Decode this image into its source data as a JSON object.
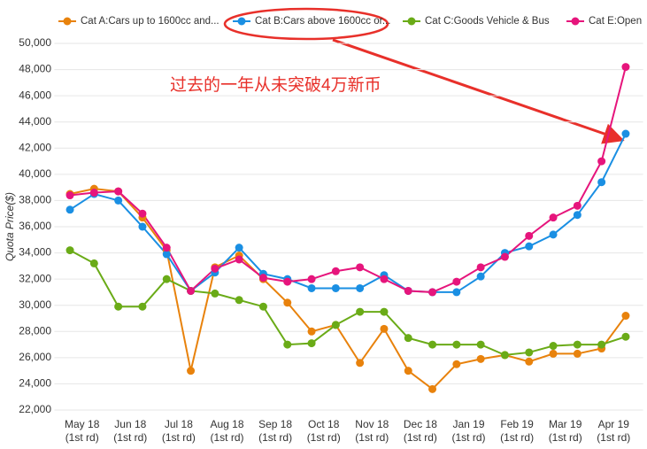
{
  "chart_data": {
    "type": "line",
    "y_label": "Quota Price($)",
    "annotation": "过去的一年从未突破4万新币",
    "categories": [
      "May 18 (1st rd)",
      null,
      "Jun 18 (1st rd)",
      null,
      "Jul 18 (1st rd)",
      null,
      "Aug 18 (1st rd)",
      null,
      "Sep 18 (1st rd)",
      null,
      "Oct 18 (1st rd)",
      null,
      "Nov 18 (1st rd)",
      null,
      "Dec 18 (1st rd)",
      null,
      "Jan 19 (1st rd)",
      null,
      "Feb 19 (1st rd)",
      null,
      "Mar 19 (1st rd)",
      null,
      "Apr 19 (1st rd)",
      null
    ],
    "series": [
      {
        "name": "Cat A:Cars up to 1600cc and...",
        "color": "#e8820c",
        "values": [
          38500,
          38900,
          38700,
          36700,
          34200,
          25000,
          32900,
          33800,
          32000,
          30200,
          28000,
          28500,
          25600,
          28200,
          25000,
          23600,
          25500,
          25900,
          26200,
          25700,
          26300,
          26300,
          26700,
          29200
        ]
      },
      {
        "name": "Cat B:Cars above 1600cc or...",
        "color": "#1a8fe3",
        "values": [
          37300,
          38500,
          38000,
          36000,
          33900,
          31100,
          32500,
          34400,
          32400,
          32000,
          31300,
          31300,
          31300,
          32300,
          31100,
          31000,
          31000,
          32200,
          34000,
          34500,
          35400,
          36900,
          39400,
          43100
        ]
      },
      {
        "name": "Cat C:Goods Vehicle & Bus",
        "color": "#6aab17",
        "values": [
          34200,
          33200,
          29900,
          29900,
          32000,
          31100,
          30900,
          30400,
          29900,
          27000,
          27100,
          28500,
          29500,
          29500,
          27500,
          27000,
          27000,
          27000,
          26200,
          26400,
          26900,
          27000,
          27000,
          27600
        ]
      },
      {
        "name": "Cat E:Open",
        "color": "#e6157c",
        "values": [
          38400,
          38600,
          38700,
          37000,
          34400,
          31100,
          32800,
          33500,
          32100,
          31800,
          32000,
          32600,
          32900,
          32000,
          31100,
          31000,
          31800,
          32900,
          33700,
          35300,
          36700,
          37600,
          41000,
          48200
        ]
      }
    ],
    "ylim": [
      22000,
      50000
    ],
    "yticks": [
      {
        "value": 22000,
        "label": "22,000"
      },
      {
        "value": 24000,
        "label": "24,000"
      },
      {
        "value": 26000,
        "label": "26,000"
      },
      {
        "value": 28000,
        "label": "28,000"
      },
      {
        "value": 30000,
        "label": "30,000"
      },
      {
        "value": 32000,
        "label": "32,000"
      },
      {
        "value": 34000,
        "label": "34,000"
      },
      {
        "value": 36000,
        "label": "36,000"
      },
      {
        "value": 38000,
        "label": "38,000"
      },
      {
        "value": 40000,
        "label": "40,000"
      },
      {
        "value": 42000,
        "label": "42,000"
      },
      {
        "value": 44000,
        "label": "44,000"
      },
      {
        "value": 46000,
        "label": "46,000"
      },
      {
        "value": 48000,
        "label": "48,000"
      },
      {
        "value": 50000,
        "label": "50,000"
      }
    ],
    "grid": true
  }
}
